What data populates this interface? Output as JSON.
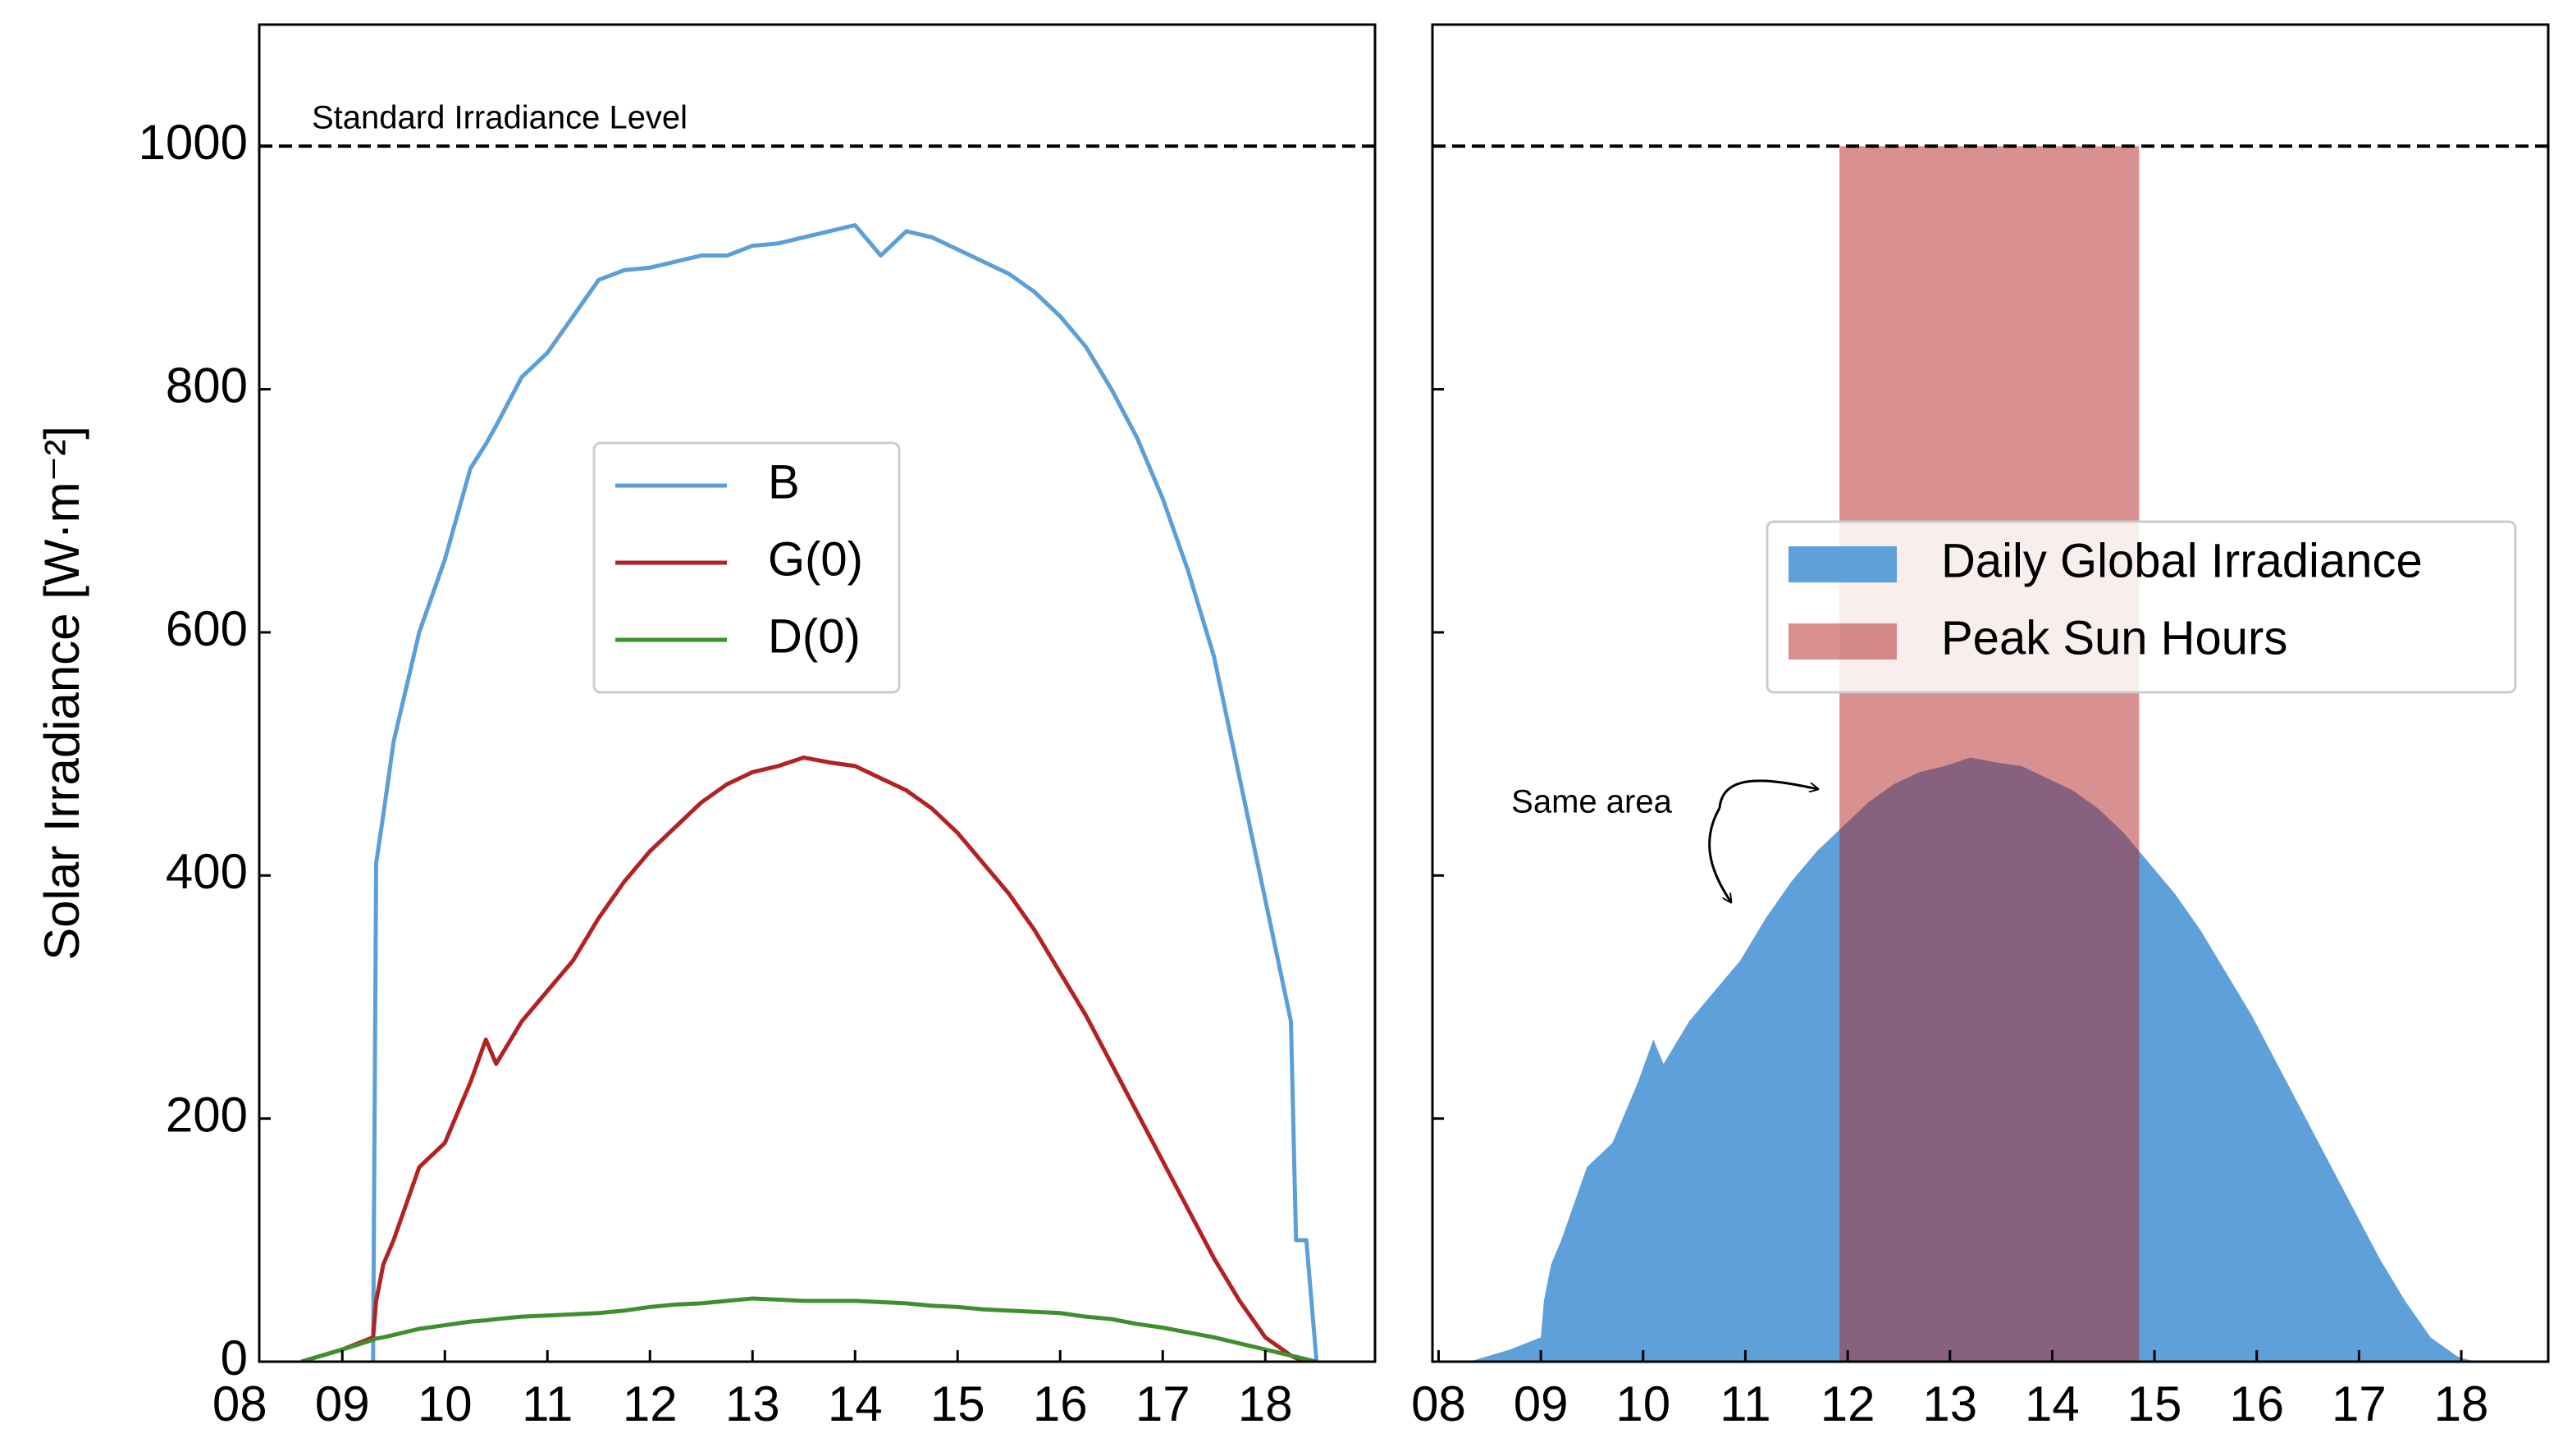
{
  "chart_data": [
    {
      "type": "line",
      "ylabel": "Solar Irradiance [W·m⁻²]",
      "x": [
        8.6,
        9.0,
        9.3,
        9.33,
        9.4,
        9.5,
        9.75,
        10.0,
        10.25,
        10.4,
        10.5,
        10.75,
        11.0,
        11.25,
        11.5,
        11.75,
        12.0,
        12.25,
        12.5,
        12.75,
        13.0,
        13.25,
        13.5,
        13.75,
        14.0,
        14.25,
        14.5,
        14.75,
        15.0,
        15.25,
        15.5,
        15.75,
        16.0,
        16.25,
        16.5,
        16.75,
        17.0,
        17.25,
        17.5,
        17.75,
        18.0,
        18.25,
        18.3,
        18.4,
        18.5
      ],
      "series": [
        {
          "name": "B",
          "color": "#5b9fd6",
          "values": [
            null,
            null,
            0,
            410,
            450,
            510,
            600,
            660,
            735,
            755,
            770,
            810,
            830,
            860,
            890,
            898,
            900,
            905,
            910,
            910,
            918,
            920,
            925,
            930,
            935,
            910,
            930,
            925,
            915,
            905,
            895,
            880,
            860,
            835,
            800,
            760,
            710,
            650,
            580,
            480,
            380,
            280,
            100,
            100,
            0
          ]
        },
        {
          "name": "G(0)",
          "color": "#b22222",
          "values": [
            0,
            10,
            20,
            50,
            80,
            100,
            160,
            180,
            230,
            265,
            245,
            280,
            305,
            330,
            365,
            395,
            420,
            440,
            460,
            475,
            485,
            490,
            497,
            493,
            490,
            480,
            470,
            455,
            435,
            410,
            385,
            355,
            320,
            285,
            245,
            205,
            165,
            125,
            85,
            50,
            20,
            5,
            3,
            1,
            0
          ]
        },
        {
          "name": "D(0)",
          "color": "#3f8f2f",
          "values": [
            0,
            10,
            18,
            19,
            20,
            22,
            27,
            30,
            33,
            34,
            35,
            37,
            38,
            39,
            40,
            42,
            45,
            47,
            48,
            50,
            52,
            51,
            50,
            50,
            50,
            49,
            48,
            46,
            45,
            43,
            42,
            41,
            40,
            37,
            35,
            31,
            28,
            24,
            20,
            15,
            10,
            5,
            4,
            2,
            0
          ]
        }
      ],
      "xlim": [
        8.19,
        19.07
      ],
      "ylim": [
        0,
        1100
      ],
      "xticks": [
        {
          "value": 8,
          "label": "08"
        },
        {
          "value": 9,
          "label": "09"
        },
        10,
        11,
        12,
        13,
        14,
        15,
        16,
        17,
        18
      ],
      "yticks": [
        0,
        200,
        400,
        600,
        800,
        1000
      ],
      "hline": {
        "y": 1000,
        "label": "Standard Irradiance Level"
      },
      "legend": "center"
    },
    {
      "type": "area",
      "x": [
        8.3,
        8.7,
        9.0,
        9.03,
        9.1,
        9.2,
        9.45,
        9.7,
        9.95,
        10.1,
        10.2,
        10.45,
        10.7,
        10.95,
        11.2,
        11.45,
        11.7,
        11.95,
        12.2,
        12.45,
        12.7,
        12.95,
        13.2,
        13.45,
        13.7,
        13.95,
        14.2,
        14.45,
        14.7,
        14.95,
        15.2,
        15.45,
        15.7,
        15.95,
        16.2,
        16.45,
        16.7,
        16.95,
        17.2,
        17.45,
        17.7,
        17.95,
        18.0,
        18.1,
        18.2
      ],
      "series": [
        {
          "name": "Daily Global Irradiance",
          "color": "#5ea1da",
          "values": [
            0,
            10,
            20,
            50,
            80,
            100,
            160,
            180,
            230,
            265,
            245,
            280,
            305,
            330,
            365,
            395,
            420,
            440,
            460,
            475,
            485,
            490,
            497,
            493,
            490,
            480,
            470,
            455,
            435,
            410,
            385,
            355,
            320,
            285,
            245,
            205,
            165,
            125,
            85,
            50,
            20,
            5,
            3,
            1,
            0
          ]
        }
      ],
      "span": {
        "name": "Peak Sun Hours",
        "color": "#b22222",
        "x": [
          11.92,
          14.85
        ],
        "y": [
          0,
          1000
        ]
      },
      "annotation": "Same area",
      "xlim": [
        7.94,
        18.85
      ],
      "ylim": [
        0,
        1100
      ],
      "xticks": [
        {
          "value": 8,
          "label": "08"
        },
        {
          "value": 9,
          "label": "09"
        },
        10,
        11,
        12,
        13,
        14,
        15,
        16,
        17,
        18
      ],
      "yticks": [
        0,
        200,
        400,
        600,
        800,
        1000
      ],
      "hline": {
        "y": 1000
      },
      "legend": "center right"
    }
  ]
}
